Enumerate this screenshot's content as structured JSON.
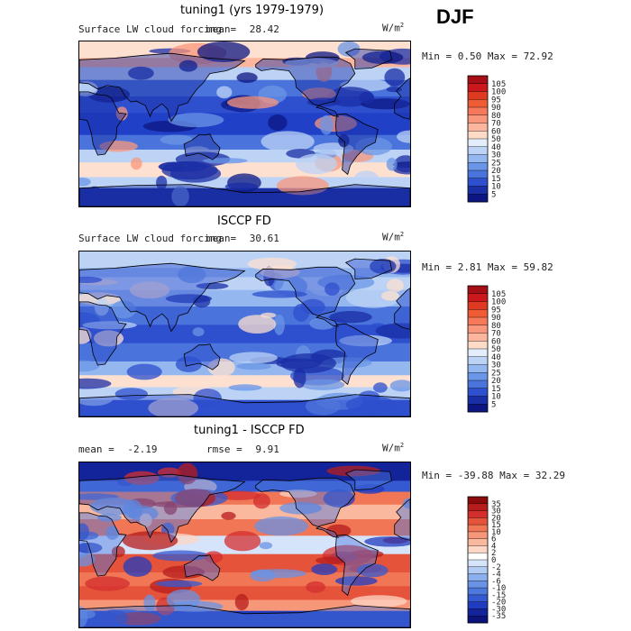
{
  "season": "DJF",
  "panels": [
    {
      "title": "tuning1 (yrs 1979-1979)",
      "variable": "Surface LW cloud forcing",
      "mean_label": "mean=",
      "mean_value": "28.42",
      "units_base": "W/m",
      "units_exp": "2",
      "minmax": "Min =   0.50 Max =  72.92",
      "colorbar_labels": [
        "105",
        "100",
        "95",
        "90",
        "80",
        "70",
        "60",
        "50",
        "40",
        "30",
        "25",
        "20",
        "15",
        "10",
        "5"
      ],
      "colorbar_colors": [
        "#a50f15",
        "#cb181d",
        "#de3a22",
        "#ef5b35",
        "#f5795a",
        "#f9977c",
        "#fbb69d",
        "#fddbc7",
        "#e3edfb",
        "#bcd3f6",
        "#94b7f0",
        "#6b95e6",
        "#4a73db",
        "#2e4fce",
        "#1a2ea5",
        "#0c1782"
      ],
      "map_palette": "model"
    },
    {
      "title": "ISCCP FD",
      "variable": "Surface LW cloud forcing",
      "mean_label": "mean=",
      "mean_value": "30.61",
      "units_base": "W/m",
      "units_exp": "2",
      "minmax": "Min =   2.81 Max =  59.82",
      "colorbar_labels": [
        "105",
        "100",
        "95",
        "90",
        "80",
        "70",
        "60",
        "50",
        "40",
        "30",
        "25",
        "20",
        "15",
        "10",
        "5"
      ],
      "colorbar_colors": [
        "#a50f15",
        "#cb181d",
        "#de3a22",
        "#ef5b35",
        "#f5795a",
        "#f9977c",
        "#fbb69d",
        "#fddbc7",
        "#e3edfb",
        "#bcd3f6",
        "#94b7f0",
        "#6b95e6",
        "#4a73db",
        "#2e4fce",
        "#1a2ea5",
        "#0c1782"
      ],
      "map_palette": "obs"
    },
    {
      "title": "tuning1 - ISCCP FD",
      "variable": "",
      "mean_label": "mean =",
      "mean_value": "-2.19",
      "rmse_label": "rmse =",
      "rmse_value": "9.91",
      "units_base": "W/m",
      "units_exp": "2",
      "minmax": "Min = -39.88 Max =  32.29",
      "colorbar_labels": [
        "35",
        "30",
        "20",
        "15",
        "10",
        "6",
        "4",
        "2",
        "0",
        "-2",
        "-4",
        "-6",
        "-10",
        "-15",
        "-20",
        "-30",
        "-35"
      ],
      "colorbar_colors": [
        "#8b0a0a",
        "#b71c1c",
        "#d32f2f",
        "#e5533a",
        "#f07656",
        "#f6977a",
        "#fab89f",
        "#fdd6c5",
        "#ffffff",
        "#d6e4fb",
        "#b1cbf5",
        "#8cafef",
        "#6a93e6",
        "#4d78dc",
        "#3459d0",
        "#203bbf",
        "#13249a",
        "#0b137a"
      ],
      "map_palette": "diff"
    }
  ]
}
